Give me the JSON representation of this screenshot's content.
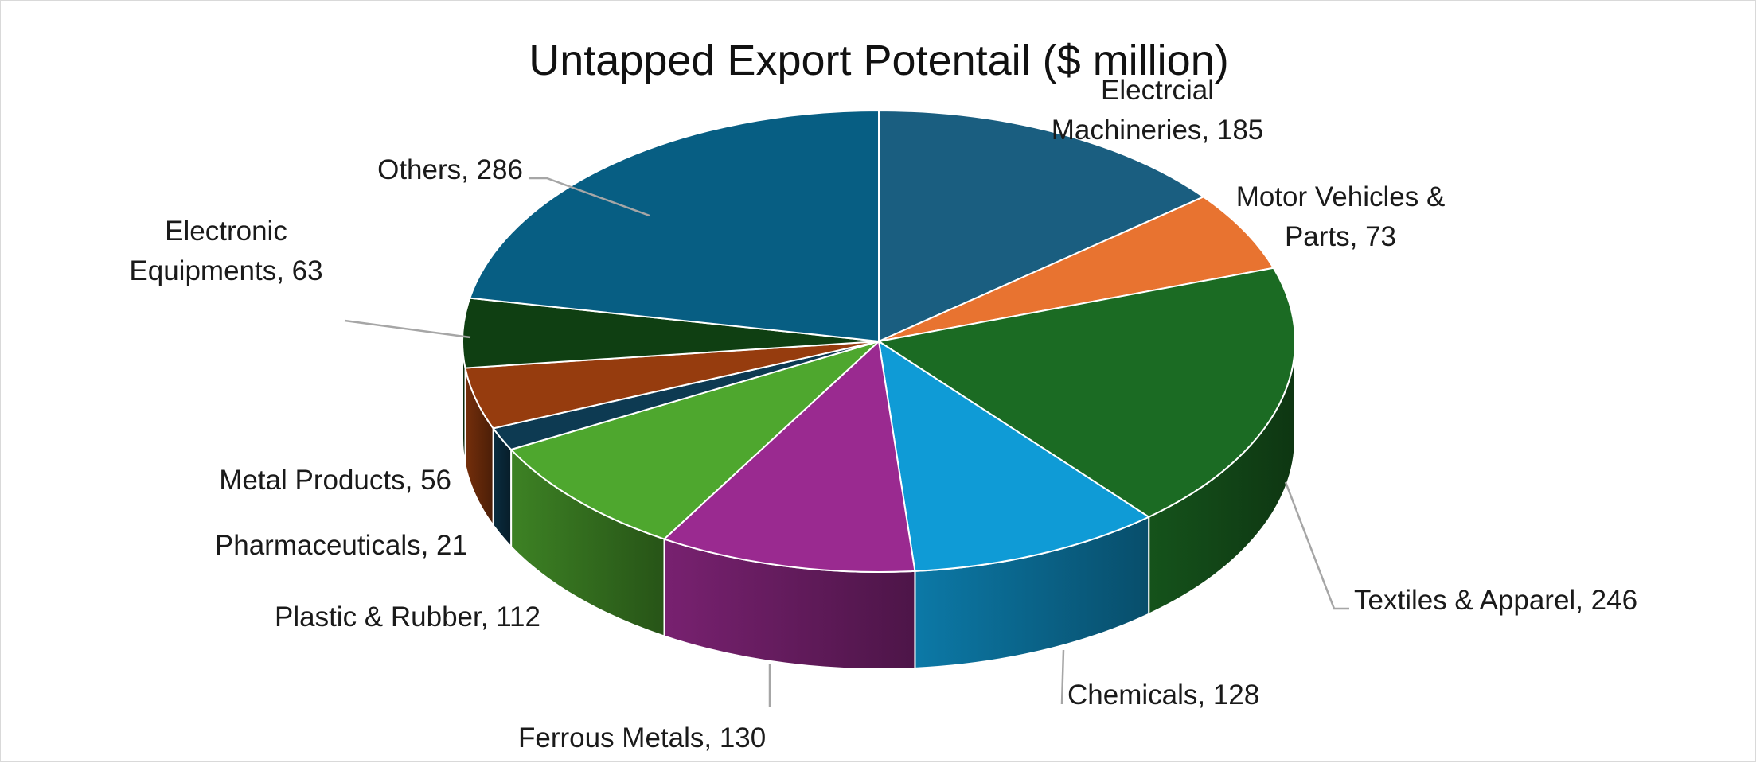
{
  "chart_data": {
    "type": "pie",
    "title": "Untapped Export Potentail ($ million)",
    "categories": [
      "Electrcial Machineries",
      "Motor Vehicles & Parts",
      "Textiles & Apparel",
      "Chemicals",
      "Ferrous Metals",
      "Plastic & Rubber",
      "Pharmaceuticals",
      "Metal Products",
      "Electronic Equipments",
      "Others"
    ],
    "values": [
      185,
      73,
      246,
      128,
      130,
      112,
      21,
      56,
      63,
      286
    ],
    "data_labels": [
      [
        "Electrcial",
        "Machineries, 185"
      ],
      [
        "Motor Vehicles &",
        "Parts, 73"
      ],
      [
        "Textiles & Apparel, 246"
      ],
      [
        "Chemicals, 128"
      ],
      [
        "Ferrous Metals, 130"
      ],
      [
        "Plastic & Rubber, 112"
      ],
      [
        "Pharmaceuticals, 21"
      ],
      [
        "Metal Products, 56"
      ],
      [
        "Electronic",
        "Equipments, 63"
      ],
      [
        "Others, 286"
      ]
    ],
    "colors": [
      "#1a5e80",
      "#e87330",
      "#1b6b23",
      "#0f9bd6",
      "#9a2a90",
      "#4ea72e",
      "#0d3a52",
      "#963c0e",
      "#0f3f12",
      "#075e83"
    ],
    "legend": "none",
    "style": "3d-pie"
  }
}
